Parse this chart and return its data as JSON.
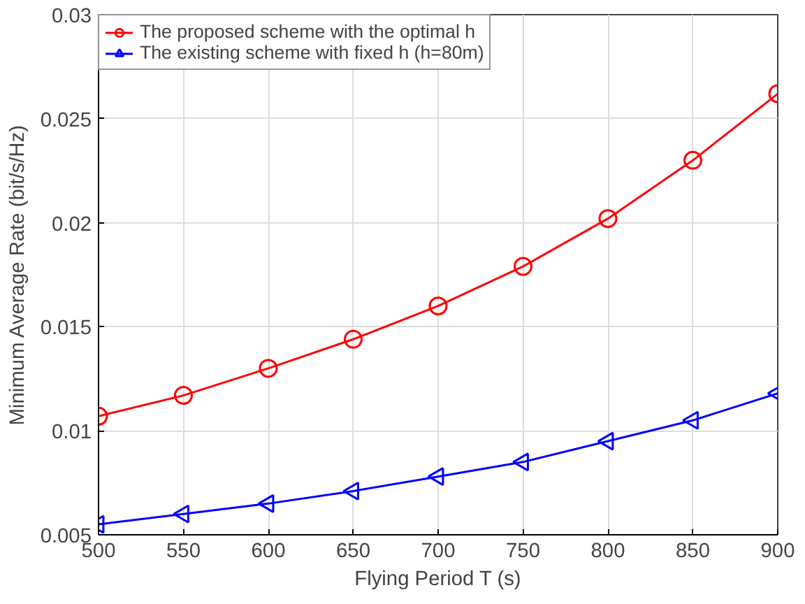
{
  "chart_data": {
    "type": "line",
    "xlabel": "Flying Period T (s)",
    "ylabel": "Minimum Average Rate (bit/s/Hz)",
    "x": [
      500,
      550,
      600,
      650,
      700,
      750,
      800,
      850,
      900
    ],
    "series": [
      {
        "name": "The proposed scheme with the optimal h",
        "color": "#ff0000",
        "marker": "circle",
        "values": [
          0.0107,
          0.0117,
          0.013,
          0.0144,
          0.016,
          0.0179,
          0.0202,
          0.023,
          0.0262
        ]
      },
      {
        "name": "The existing scheme with fixed h (h=80m)",
        "color": "#0000ff",
        "marker": "triangle",
        "values": [
          0.0055,
          0.006,
          0.0065,
          0.0071,
          0.0078,
          0.0085,
          0.0095,
          0.0105,
          0.0118
        ]
      }
    ],
    "xlim": [
      500,
      900
    ],
    "xticks": [
      500,
      550,
      600,
      650,
      700,
      750,
      800,
      850,
      900
    ],
    "ylim": [
      0.005,
      0.03
    ],
    "yticks": [
      0.005,
      0.01,
      0.015,
      0.02,
      0.025,
      0.03
    ],
    "grid": true,
    "legend": "top left",
    "line_style": "solid"
  }
}
